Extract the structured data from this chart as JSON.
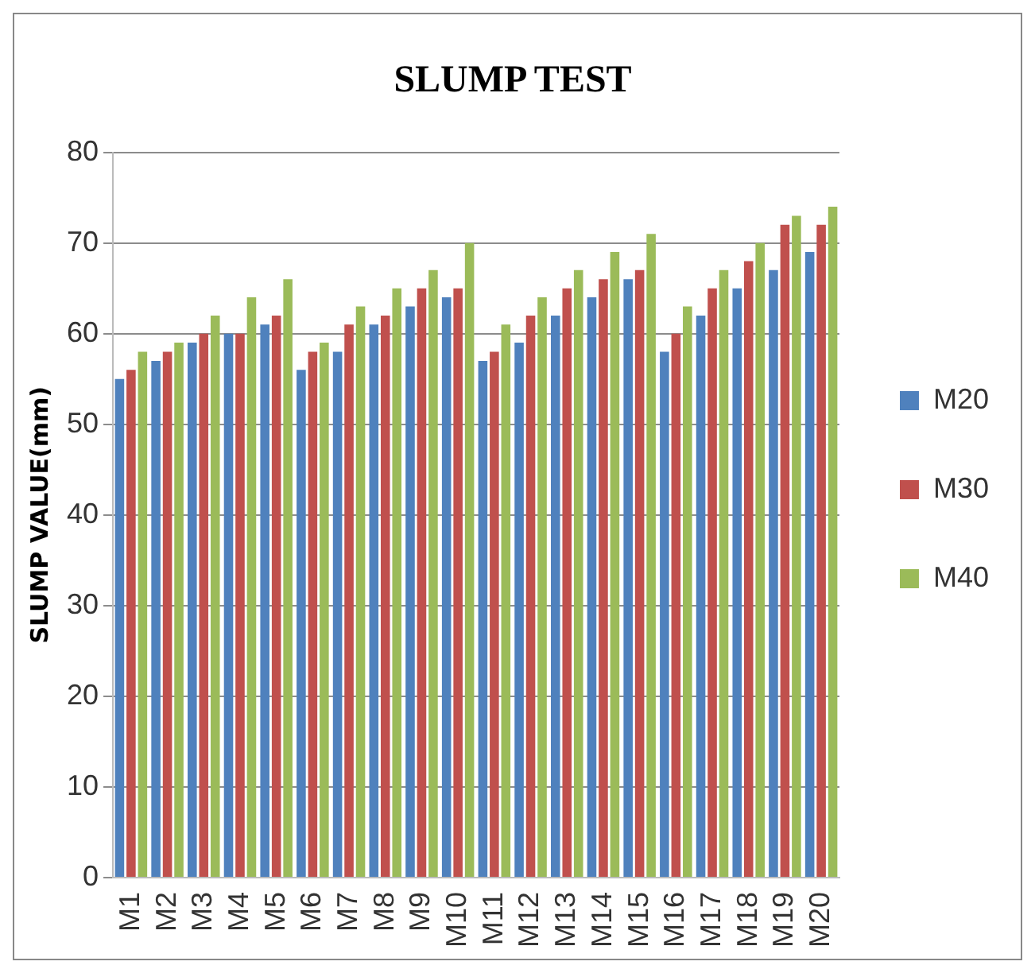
{
  "chart_data": {
    "type": "bar",
    "title": "SLUMP TEST",
    "ylabel": "SLUMP VALUE(mm)",
    "categories": [
      "M1",
      "M2",
      "M3",
      "M4",
      "M5",
      "M6",
      "M7",
      "M8",
      "M9",
      "M10",
      "M11",
      "M12",
      "M13",
      "M14",
      "M15",
      "M16",
      "M17",
      "M18",
      "M19",
      "M20"
    ],
    "series": [
      {
        "name": "M20",
        "color": "#4f81bd",
        "values": [
          55,
          57,
          59,
          60,
          61,
          56,
          58,
          61,
          63,
          64,
          57,
          59,
          62,
          64,
          66,
          58,
          62,
          65,
          67,
          69
        ]
      },
      {
        "name": "M30",
        "color": "#c0504d",
        "values": [
          56,
          58,
          60,
          60,
          62,
          58,
          61,
          62,
          65,
          65,
          58,
          62,
          65,
          66,
          67,
          60,
          65,
          68,
          72,
          72
        ]
      },
      {
        "name": "M40",
        "color": "#9bbb59",
        "values": [
          58,
          59,
          62,
          64,
          66,
          59,
          63,
          65,
          67,
          70,
          61,
          64,
          67,
          69,
          71,
          63,
          67,
          70,
          73,
          74
        ]
      }
    ],
    "ylim": [
      0,
      80
    ],
    "yticks": [
      0,
      10,
      20,
      30,
      40,
      50,
      60,
      70,
      80
    ],
    "grid": "y",
    "legend": "right"
  }
}
